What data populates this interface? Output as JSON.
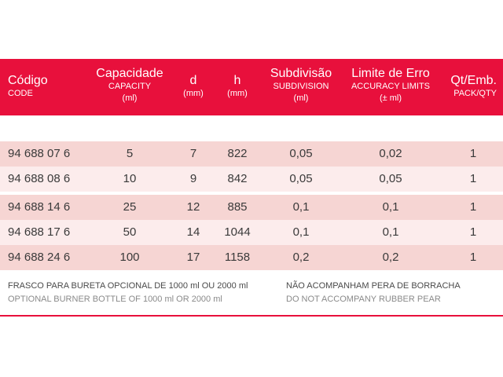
{
  "colors": {
    "accent": "#e8103c",
    "row_dark": "#f6d5d3",
    "row_light": "#fcecec"
  },
  "headers": [
    {
      "main": "Código",
      "sub": "CODE",
      "sub2": ""
    },
    {
      "main": "Capacidade",
      "sub": "CAPACITY",
      "sub2": "(ml)"
    },
    {
      "main": "d",
      "sub": "(mm)",
      "sub2": ""
    },
    {
      "main": "h",
      "sub": "(mm)",
      "sub2": ""
    },
    {
      "main": "Subdivisão",
      "sub": "SUBDIVISION",
      "sub2": "(ml)"
    },
    {
      "main": "Limite de Erro",
      "sub": "ACCURACY LIMITS",
      "sub2": "(± ml)"
    },
    {
      "main": "Qt/Emb.",
      "sub": "PACK/QTY",
      "sub2": ""
    }
  ],
  "rows": [
    [
      "94 688 07 6",
      "5",
      "7",
      "822",
      "0,05",
      "0,02",
      "1"
    ],
    [
      "94 688 08 6",
      "10",
      "9",
      "842",
      "0,05",
      "0,05",
      "1"
    ],
    [
      "94 688 14 6",
      "25",
      "12",
      "885",
      "0,1",
      "0,1",
      "1"
    ],
    [
      "94 688 17 6",
      "50",
      "14",
      "1044",
      "0,1",
      "0,1",
      "1"
    ],
    [
      "94 688 24 6",
      "100",
      "17",
      "1158",
      "0,2",
      "0,2",
      "1"
    ]
  ],
  "notes": {
    "left_pt": "FRASCO PARA BURETA OPCIONAL DE 1000 ml OU 2000 ml",
    "left_en": "OPTIONAL BURNER BOTTLE OF 1000 ml OR 2000 ml",
    "right_pt": "NÃO ACOMPANHAM PERA DE BORRACHA",
    "right_en": "DO NOT ACCOMPANY RUBBER PEAR"
  }
}
